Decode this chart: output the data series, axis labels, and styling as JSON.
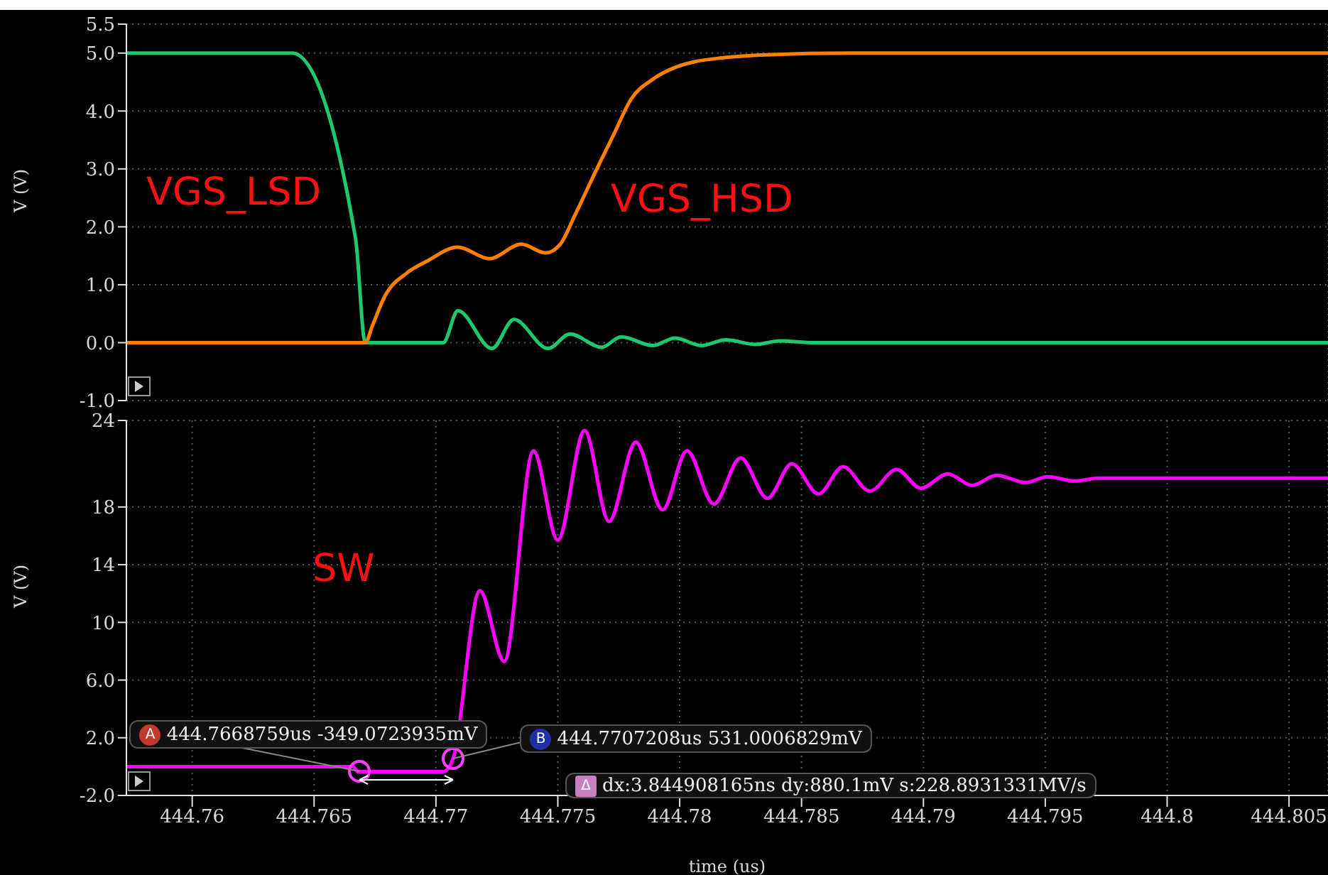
{
  "chart_data": [
    {
      "type": "line",
      "ylabel": "V (V)",
      "xlim": [
        444.7573,
        444.8066
      ],
      "xticks": [
        444.76,
        444.765,
        444.77,
        444.775,
        444.78,
        444.785,
        444.79,
        444.795,
        444.8,
        444.805
      ],
      "ylim": [
        -1,
        5.5
      ],
      "yticks": [
        {
          "value": -1,
          "label": "-1.0"
        },
        {
          "value": 0,
          "label": "0.0"
        },
        {
          "value": 1,
          "label": "1.0"
        },
        {
          "value": 2,
          "label": "2.0"
        },
        {
          "value": 3,
          "label": "3.0"
        },
        {
          "value": 4,
          "label": "4.0"
        },
        {
          "value": 5,
          "label": "5.0"
        },
        5.5
      ],
      "grid": true,
      "tick_labels": "y",
      "series": [
        {
          "name": "VGS_LSD",
          "color": "#1ec86e",
          "x": [
            444.7573,
            444.7641,
            444.7667,
            444.7671,
            444.7703,
            444.7709,
            444.7723,
            444.7732,
            444.7746,
            444.7755,
            444.7768,
            444.7776,
            444.7789,
            444.7798,
            444.7809,
            444.7819,
            444.7831,
            444.7841,
            444.7855,
            444.8066
          ],
          "values": [
            5.0,
            5.0,
            1.8,
            0.0,
            0.0,
            0.55,
            -0.1,
            0.4,
            -0.1,
            0.15,
            -0.08,
            0.1,
            -0.05,
            0.08,
            -0.05,
            0.05,
            -0.03,
            0.03,
            0.0,
            0.0
          ]
        },
        {
          "name": "VGS_HSD",
          "color": "#ff8000",
          "x": [
            444.7573,
            444.7671,
            444.7674,
            444.7679,
            444.7688,
            444.7696,
            444.7709,
            444.7722,
            444.7735,
            444.7745,
            444.7751,
            444.7757,
            444.7766,
            444.7773,
            444.778,
            444.7789,
            444.7798,
            444.7806,
            444.7818,
            444.7835,
            444.787,
            444.8066
          ],
          "values": [
            0,
            0,
            0.3,
            0.8,
            1.2,
            1.4,
            1.65,
            1.45,
            1.7,
            1.55,
            1.7,
            2.2,
            3.0,
            3.6,
            4.2,
            4.55,
            4.75,
            4.85,
            4.92,
            4.97,
            5.0,
            5.0
          ]
        }
      ]
    },
    {
      "type": "line",
      "ylabel": "V (V)",
      "xlabel": "time (us)",
      "xlim": [
        444.7573,
        444.8066
      ],
      "xticks": [
        444.76,
        444.765,
        444.77,
        444.775,
        444.78,
        444.785,
        444.79,
        444.795,
        444.8,
        444.805
      ],
      "ylim": [
        -2,
        24
      ],
      "yticks": [
        {
          "value": -2,
          "label": "-2.0"
        },
        {
          "value": 2,
          "label": "2.0"
        },
        {
          "value": 6,
          "label": "6.0"
        },
        10,
        14,
        18,
        24
      ],
      "grid": true,
      "series": [
        {
          "name": "SW",
          "color": "#ff00ff",
          "x": [
            444.7573,
            444.7666,
            444.7668,
            444.7703,
            444.7707,
            444.7718,
            444.7728,
            444.774,
            444.775,
            444.7761,
            444.7771,
            444.7782,
            444.7793,
            444.7803,
            444.7814,
            444.7825,
            444.7836,
            444.7846,
            444.7857,
            444.7867,
            444.7878,
            444.7889,
            444.7899,
            444.791,
            444.792,
            444.793,
            444.7942,
            444.7951,
            444.7962,
            444.7972,
            444.8066
          ],
          "values": [
            0,
            0,
            -0.35,
            -0.35,
            0.53,
            12.2,
            7.3,
            21.9,
            15.7,
            23.3,
            17.0,
            22.5,
            17.8,
            21.9,
            18.2,
            21.4,
            18.6,
            21.0,
            18.9,
            20.8,
            19.1,
            20.6,
            19.3,
            20.3,
            19.5,
            20.2,
            19.7,
            20.1,
            19.8,
            20.0,
            20.0
          ]
        }
      ],
      "annotations": [
        {
          "text": "A 444.7668759us -349.0723935mV",
          "x": 444.7668759,
          "y": -0.3490723935
        },
        {
          "text": "B 444.7707208us 531.0006829mV",
          "x": 444.7707208,
          "y": 0.5310006829
        },
        "Δ dx:3.844908165ns dy:880.1mV s:228.8931331MV/s"
      ]
    }
  ]
}
